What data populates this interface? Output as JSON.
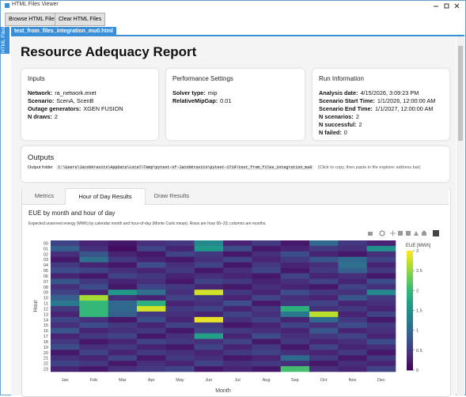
{
  "window": {
    "title": "HTML Files Viewer"
  },
  "toolbar": {
    "buttons": [
      "Browse HTML Files",
      "Clear HTML Files"
    ]
  },
  "side_tab": "HTML Files",
  "file_tab": "test_from_files_integration_mu0.html",
  "report": {
    "title": "Resource Adequacy Report",
    "cards": [
      {
        "title": "Inputs",
        "rows": [
          [
            "Network:",
            "ra_network.enet"
          ],
          [
            "Scenario:",
            "ScenA, ScenB"
          ],
          [
            "Outage generators:",
            "XGEN FUSION"
          ],
          [
            "N draws:",
            2
          ]
        ]
      },
      {
        "title": "Performance Settings",
        "rows": [
          [
            "Solver type:",
            "mip"
          ],
          [
            "RelativeMipGap:",
            0.01
          ]
        ]
      },
      {
        "title": "Run Information",
        "rows": [
          [
            "Analysis date:",
            "4/15/2026, 3:09:23 PM"
          ],
          [
            "Scenario Start Time:",
            "1/1/2026, 12:00:00 AM"
          ],
          [
            "Scenario End Time:",
            "1/1/2027, 12:00:00 AM"
          ],
          [
            "N scenarios:",
            2
          ],
          [
            "N successful:",
            2
          ],
          [
            "N failed:",
            0
          ]
        ]
      }
    ],
    "outputs": {
      "title": "Outputs",
      "label": "Output folder",
      "path": "C:\\Users\\JacobKravits\\AppData\\Local\\Temp\\pytest-of-JacobKravits\\pytest-1719\\test_from_files_integration_mu0",
      "hint": "(Click to copy, then paste in file explorer address bar)"
    },
    "tabs": [
      "Metrics",
      "Hour of Day Results",
      "Draw Results"
    ],
    "active_tab": 1
  },
  "chart_data": {
    "type": "heatmap",
    "title": "EUE by month and hour of day",
    "subtitle": "Expected unserved energy (MWh) by calendar month and hour-of-day (Monte Carlo mean). Rows are hour 00–23; columns are months.",
    "x_label": "Month",
    "y_label": "Hour",
    "x": [
      "Jan",
      "Feb",
      "Mar",
      "Apr",
      "May",
      "Jun",
      "Jul",
      "Aug",
      "Sep",
      "Oct",
      "Nov",
      "Dec"
    ],
    "y": [
      "00",
      "01",
      "02",
      "03",
      "04",
      "05",
      "06",
      "07",
      "08",
      "09",
      "10",
      "11",
      "12",
      "13",
      "14",
      "15",
      "16",
      "17",
      "18",
      "19",
      "20",
      "21",
      "22",
      "23"
    ],
    "z": [
      [
        0.6,
        0.3,
        0.2,
        0.4,
        0.5,
        1.4,
        0.3,
        0.5,
        0.2,
        1.0,
        0.5,
        0.3
      ],
      [
        0.9,
        0.4,
        0.1,
        0.6,
        0.3,
        1.6,
        0.7,
        0.2,
        0.3,
        0.5,
        0.4,
        1.5
      ],
      [
        0.4,
        0.8,
        0.3,
        0.2,
        0.6,
        0.5,
        0.2,
        0.4,
        0.7,
        0.3,
        0.2,
        0.4
      ],
      [
        0.2,
        1.1,
        0.5,
        0.3,
        0.2,
        0.4,
        0.6,
        0.3,
        0.5,
        0.8,
        1.0,
        0.6
      ],
      [
        0.5,
        0.3,
        0.2,
        0.7,
        0.4,
        0.6,
        0.2,
        0.5,
        0.3,
        0.4,
        1.1,
        0.3
      ],
      [
        0.7,
        0.6,
        0.4,
        0.3,
        0.5,
        0.2,
        0.4,
        0.6,
        0.2,
        0.5,
        0.9,
        0.5
      ],
      [
        0.3,
        0.2,
        0.6,
        0.5,
        0.3,
        0.4,
        0.3,
        0.2,
        0.6,
        0.3,
        0.4,
        0.2
      ],
      [
        0.8,
        0.5,
        0.3,
        0.4,
        0.2,
        0.6,
        0.5,
        0.3,
        0.4,
        0.6,
        0.3,
        0.7
      ],
      [
        0.4,
        0.7,
        0.2,
        0.6,
        0.5,
        0.3,
        0.2,
        0.4,
        0.3,
        0.2,
        0.6,
        0.4
      ],
      [
        0.6,
        0.3,
        1.6,
        1.1,
        0.4,
        2.8,
        0.5,
        0.3,
        0.7,
        0.5,
        0.4,
        1.4
      ],
      [
        0.9,
        2.6,
        0.4,
        0.3,
        0.6,
        0.5,
        0.3,
        0.6,
        0.4,
        0.3,
        0.8,
        0.5
      ],
      [
        1.2,
        2.0,
        1.0,
        1.9,
        0.3,
        0.4,
        0.7,
        0.2,
        0.5,
        0.6,
        0.3,
        0.4
      ],
      [
        0.5,
        2.0,
        1.0,
        2.8,
        0.5,
        0.6,
        0.3,
        0.5,
        1.9,
        0.4,
        0.5,
        0.3
      ],
      [
        0.3,
        2.0,
        0.9,
        0.5,
        0.4,
        0.3,
        0.6,
        0.4,
        1.2,
        2.7,
        0.3,
        0.6
      ],
      [
        0.6,
        0.4,
        0.2,
        0.7,
        0.3,
        2.9,
        0.4,
        0.6,
        0.3,
        1.0,
        0.5,
        0.2
      ],
      [
        0.4,
        0.7,
        0.5,
        0.3,
        0.6,
        0.5,
        0.2,
        0.3,
        0.6,
        0.4,
        0.7,
        0.5
      ],
      [
        0.8,
        0.3,
        0.4,
        0.5,
        0.2,
        0.6,
        0.5,
        0.4,
        0.3,
        0.8,
        0.3,
        0.4
      ],
      [
        0.3,
        0.5,
        0.6,
        0.2,
        0.4,
        1.7,
        0.3,
        0.7,
        0.4,
        0.5,
        0.6,
        0.3
      ],
      [
        0.5,
        0.2,
        0.3,
        0.6,
        0.5,
        0.4,
        0.6,
        0.2,
        0.5,
        0.3,
        0.4,
        0.7
      ],
      [
        0.7,
        0.4,
        0.5,
        0.3,
        0.2,
        0.6,
        0.3,
        0.5,
        0.2,
        0.6,
        0.3,
        0.4
      ],
      [
        0.2,
        0.6,
        0.3,
        0.5,
        0.4,
        0.3,
        0.5,
        0.6,
        0.4,
        0.3,
        0.5,
        0.2
      ],
      [
        0.4,
        0.3,
        0.6,
        0.2,
        0.5,
        0.4,
        0.2,
        0.3,
        1.0,
        0.5,
        0.2,
        0.5
      ],
      [
        0.6,
        0.5,
        0.2,
        0.4,
        0.3,
        0.6,
        0.4,
        0.5,
        0.4,
        0.2,
        0.4,
        0.3
      ],
      [
        0.3,
        0.2,
        0.4,
        0.5,
        0.6,
        0.2,
        0.3,
        0.2,
        2.1,
        0.4,
        0.3,
        0.6
      ]
    ],
    "colorscale": "Viridis",
    "zlim": [
      0,
      3
    ],
    "colorbar_title": "EUE [MWh]",
    "colorbar_ticks": [
      0,
      0.5,
      1,
      1.5,
      2,
      2.5,
      3
    ]
  }
}
